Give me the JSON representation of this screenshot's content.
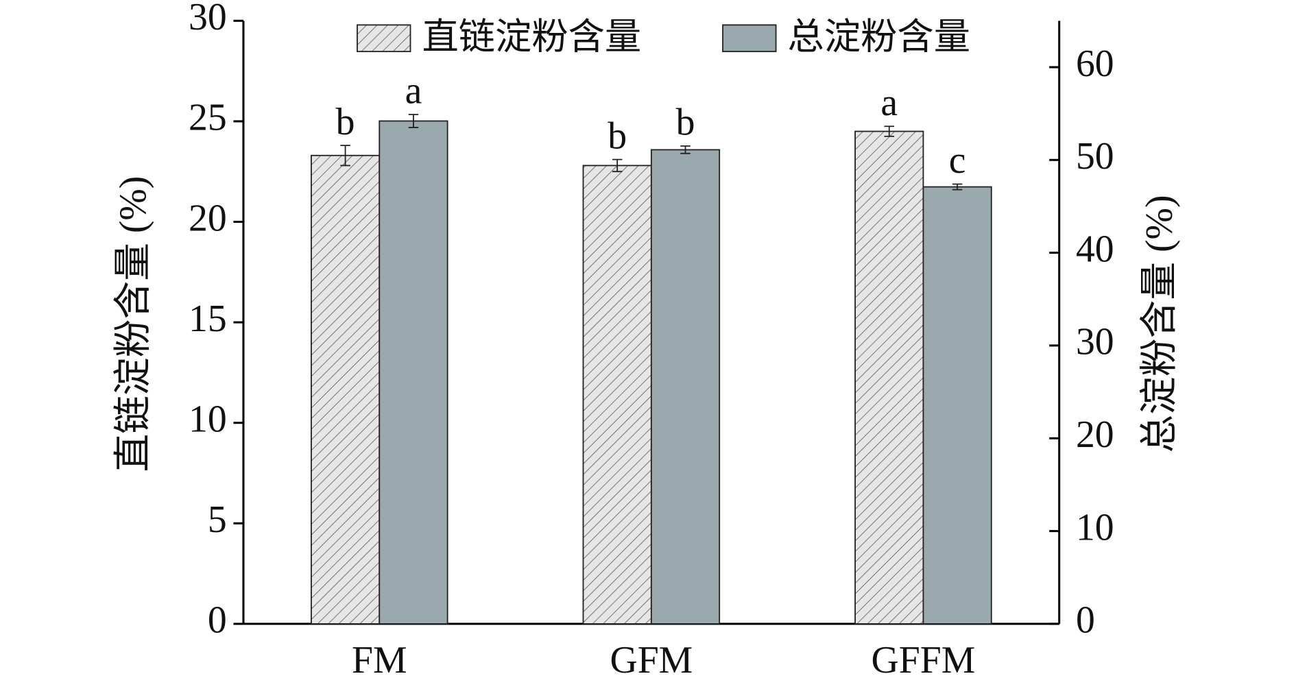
{
  "chart_data": {
    "type": "bar",
    "categories": [
      "FM",
      "GFM",
      "GFFM"
    ],
    "ylabel": "直链淀粉含量 (%)",
    "y2label": "总淀粉含量 (%)",
    "ylim": [
      0,
      30
    ],
    "yticks": [
      0,
      5,
      10,
      15,
      20,
      25,
      30
    ],
    "y2lim": [
      0,
      65
    ],
    "y2ticks": [
      0,
      10,
      20,
      30,
      40,
      50,
      60
    ],
    "legend": "top",
    "series": [
      {
        "name": "直链淀粉含量",
        "color": "#e6e6e6",
        "hatch": true,
        "axis": "y",
        "values": [
          23.3,
          22.8,
          24.5
        ],
        "errors": [
          0.5,
          0.3,
          0.25
        ],
        "labels": [
          "b",
          "b",
          "a"
        ]
      },
      {
        "name": "总淀粉含量",
        "color": "#9aa9ae",
        "hatch": false,
        "axis": "y2",
        "values": [
          54.2,
          51.1,
          47.1
        ],
        "errors": [
          0.7,
          0.4,
          0.3
        ],
        "labels": [
          "a",
          "b",
          "c"
        ]
      }
    ]
  }
}
